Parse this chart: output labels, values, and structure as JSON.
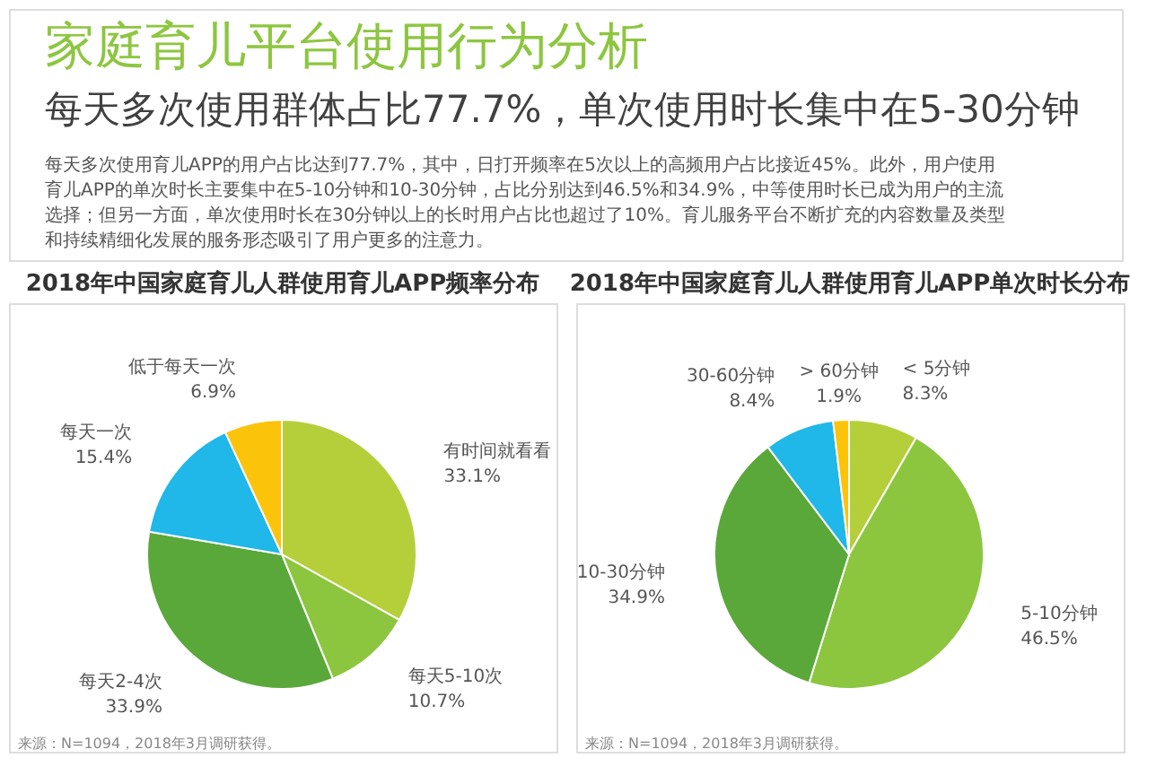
{
  "chart_data": [
    {
      "type": "other",
      "title": "家庭育儿平台使用行为分析",
      "subtitle": "每天多次使用群体占比77.7%，单次使用时长集中在5-30分钟",
      "annotations": [
        "每天多次使用育儿APP的用户占比达到77.7%，其中，日打开频率在5次以上的高频用户占比接近45%。此外，用户使用",
        "育儿APP的单次时长主要集中在5-10分钟和10-30分钟，占比分别达到46.5%和34.9%，中等使用时长已成为用户的主流",
        "选择；但另一方面，单次使用时长在30分钟以上的长时用户占比也超过了10%。育儿服务平台不断扩充的内容数量及类型",
        "和持续精细化发展的服务形态吸引了用户更多的注意力。"
      ]
    },
    {
      "type": "pie",
      "title": "2018年中国家庭育儿人群使用育儿APP频率分布",
      "categories": [
        "有时间就看看",
        "每天5-10次",
        "每天2-4次",
        "每天一次",
        "低于每天一次"
      ],
      "values": [
        33.1,
        10.7,
        33.9,
        15.4,
        6.9
      ],
      "value_labels": [
        "33.1%",
        "10.7%",
        "33.9%",
        "15.4%",
        "6.9%"
      ],
      "colors": [
        "#b5cf3a",
        "#8cc63f",
        "#5aa83a",
        "#1fb8e8",
        "#fcc30b"
      ],
      "annotations": [
        "来源：N=1094，2018年3月调研获得。"
      ]
    },
    {
      "type": "pie",
      "title": "2018年中国家庭育儿人群使用育儿APP单次时长分布",
      "categories": [
        "< 5分钟",
        "5-10分钟",
        "10-30分钟",
        "30-60分钟",
        "> 60分钟"
      ],
      "values": [
        8.3,
        46.5,
        34.9,
        8.4,
        1.9
      ],
      "value_labels": [
        "8.3%",
        "46.5%",
        "34.9%",
        "8.4%",
        "1.9%"
      ],
      "colors": [
        "#b5cf3a",
        "#8cc63f",
        "#5aa83a",
        "#1fb8e8",
        "#fcc30b"
      ],
      "annotations": [
        "来源：N=1094，2018年3月调研获得。"
      ]
    }
  ]
}
